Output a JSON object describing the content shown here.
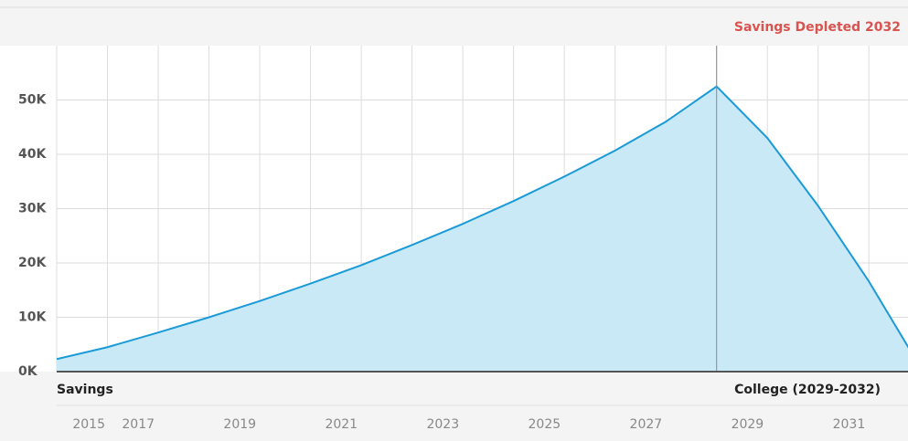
{
  "chart_data": {
    "type": "area",
    "annotations": {
      "header": "Savings Depleted 2032",
      "left": "Savings",
      "right": "College (2029-2032)",
      "marker_x": 2028
    },
    "x": [
      2015,
      2016,
      2017,
      2018,
      2019,
      2020,
      2021,
      2022,
      2023,
      2024,
      2025,
      2026,
      2027,
      2028,
      2029,
      2030,
      2031,
      2032
    ],
    "series": [
      {
        "name": "Savings",
        "color": "#1a9ad6",
        "fill": "#c9e9f7",
        "values": [
          2300,
          4500,
          7200,
          10000,
          13000,
          16200,
          19600,
          23300,
          27200,
          31400,
          35900,
          40700,
          46000,
          52500,
          43000,
          30500,
          16600,
          1000
        ]
      }
    ],
    "xlim": [
      2015,
      2031.77
    ],
    "xticks": [
      2015,
      2017,
      2019,
      2021,
      2023,
      2025,
      2027,
      2029,
      2031
    ],
    "ylim": [
      0,
      60000
    ],
    "yticks": [
      {
        "value": 0,
        "label": "0K"
      },
      {
        "value": 10000,
        "label": "10K"
      },
      {
        "value": 20000,
        "label": "20K"
      },
      {
        "value": 30000,
        "label": "30K"
      },
      {
        "value": 40000,
        "label": "40K"
      },
      {
        "value": 50000,
        "label": "50K"
      }
    ],
    "grid": true
  }
}
